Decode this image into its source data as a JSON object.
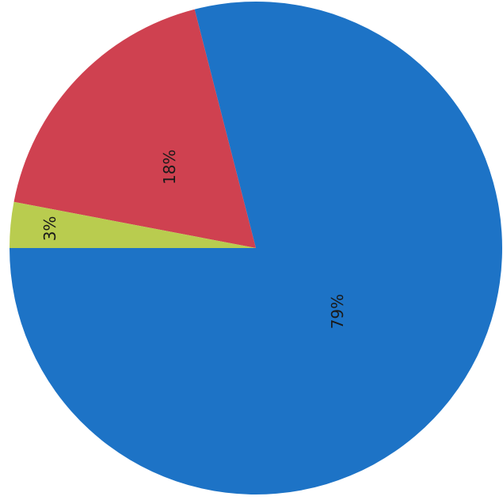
{
  "chart_data": {
    "type": "pie",
    "title": "",
    "slices": [
      {
        "label": "79%",
        "value": 79,
        "color": "#1d73c6"
      },
      {
        "label": "18%",
        "value": 18,
        "color": "#cf4150"
      },
      {
        "label": "3%",
        "value": 3,
        "color": "#b9cc4f"
      }
    ]
  }
}
